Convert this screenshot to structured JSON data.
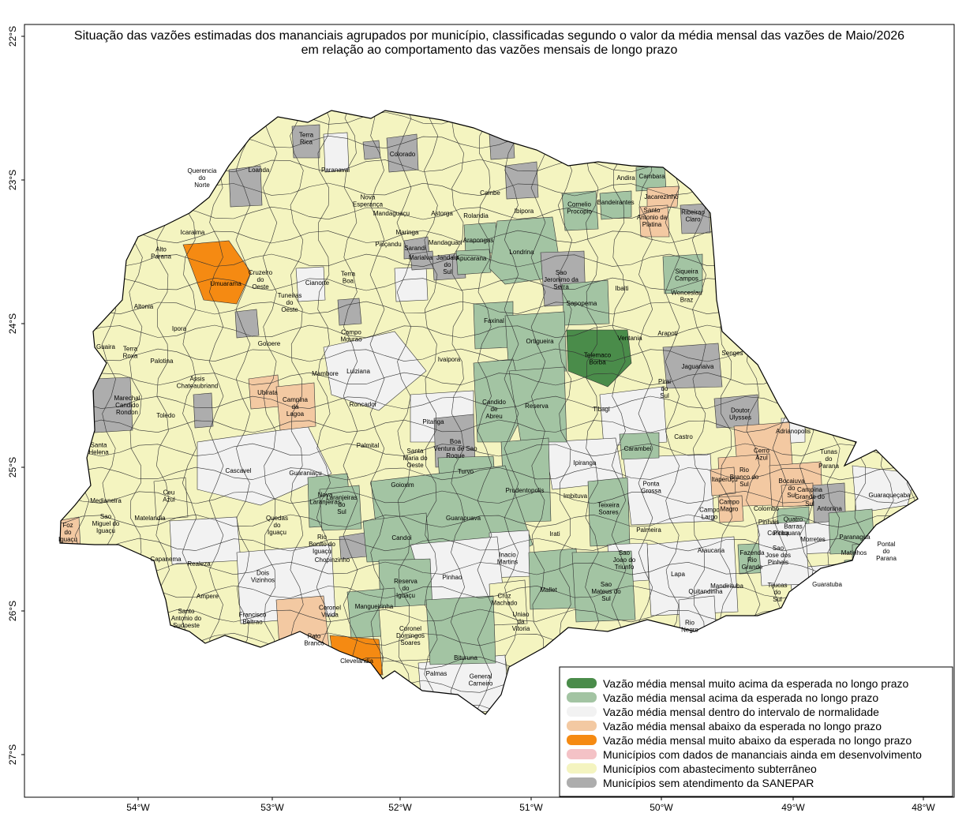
{
  "title": {
    "line1": "Situação das vazões estimadas dos mananciais agrupados por município, classificadas segundo o valor da média mensal das vazões de Maio/2026",
    "line2": "em relação ao comportamento das vazões mensais de longo prazo"
  },
  "axes": {
    "lat_labels": [
      "22°S",
      "23°S",
      "24°S",
      "25°S",
      "26°S",
      "27°S"
    ],
    "lon_labels": [
      "54°W",
      "53°W",
      "52°W",
      "51°W",
      "50°W",
      "49°W",
      "48°W"
    ]
  },
  "colors": {
    "muito_acima": "#4a8c4a",
    "acima": "#a3c4a3",
    "normal": "#f2f2f2",
    "abaixo": "#f3c9a2",
    "muito_abaixo": "#f58a12",
    "em_desenvolvimento": "#f4c2c6",
    "subterraneo": "#f4f4c0",
    "sem_atendimento": "#adadad"
  },
  "municipalities": [
    {
      "name": "Terra Rica",
      "cat": "sem_atendimento"
    },
    {
      "name": "Paranavai",
      "cat": "normal"
    },
    {
      "name": "Loanda",
      "cat": "subterraneo"
    },
    {
      "name": "Querencia do Norte",
      "cat": "subterraneo"
    },
    {
      "name": "Colorado",
      "cat": "sem_atendimento"
    },
    {
      "name": "Nova Esperança",
      "cat": "subterraneo"
    },
    {
      "name": "Mandaguaçu",
      "cat": "subterraneo"
    },
    {
      "name": "Astorga",
      "cat": "normal"
    },
    {
      "name": "Cambe",
      "cat": "acima"
    },
    {
      "name": "Rolandia",
      "cat": "acima"
    },
    {
      "name": "Ibipora",
      "cat": "acima"
    },
    {
      "name": "Cornelio Procopio",
      "cat": "acima"
    },
    {
      "name": "Andira",
      "cat": "normal"
    },
    {
      "name": "Cambara",
      "cat": "acima"
    },
    {
      "name": "Bandeirantes",
      "cat": "acima"
    },
    {
      "name": "Jacarezinho",
      "cat": "abaixo"
    },
    {
      "name": "Santo Antonio da Platina",
      "cat": "abaixo"
    },
    {
      "name": "Ribeirao Claro",
      "cat": "sem_atendimento"
    },
    {
      "name": "Icaraima",
      "cat": "subterraneo"
    },
    {
      "name": "Maringa",
      "cat": "normal"
    },
    {
      "name": "Sarandi",
      "cat": "sem_atendimento"
    },
    {
      "name": "Marialva",
      "cat": "sem_atendimento"
    },
    {
      "name": "Mandaguari",
      "cat": "normal"
    },
    {
      "name": "Paiçandu",
      "cat": "subterraneo"
    },
    {
      "name": "Jandaia do Sul",
      "cat": "sem_atendimento"
    },
    {
      "name": "Arapongas",
      "cat": "acima"
    },
    {
      "name": "Apucarana",
      "cat": "acima"
    },
    {
      "name": "Londrina",
      "cat": "acima"
    },
    {
      "name": "Sao Jeronimo da Serra",
      "cat": "sem_atendimento"
    },
    {
      "name": "Sapopema",
      "cat": "acima"
    },
    {
      "name": "Ibaiti",
      "cat": "normal"
    },
    {
      "name": "Siqueira Campos",
      "cat": "acima"
    },
    {
      "name": "Wenceslau Braz",
      "cat": "subterraneo"
    },
    {
      "name": "Alto Parana",
      "cat": "subterraneo"
    },
    {
      "name": "Umuarama",
      "cat": "muito_abaixo"
    },
    {
      "name": "Cruzeiro do Oeste",
      "cat": "subterraneo"
    },
    {
      "name": "Cianorte",
      "cat": "normal"
    },
    {
      "name": "Terra Boa",
      "cat": "subterraneo"
    },
    {
      "name": "Tuneiras do Oeste",
      "cat": "subterraneo"
    },
    {
      "name": "Altonia",
      "cat": "subterraneo"
    },
    {
      "name": "Ipora",
      "cat": "normal"
    },
    {
      "name": "Campo Mourao",
      "cat": "normal"
    },
    {
      "name": "Faxinal",
      "cat": "acima"
    },
    {
      "name": "Ortigueira",
      "cat": "acima"
    },
    {
      "name": "Telemaco Borba",
      "cat": "muito_acima"
    },
    {
      "name": "Ventania",
      "cat": "normal"
    },
    {
      "name": "Arapoti",
      "cat": "subterraneo"
    },
    {
      "name": "Senges",
      "cat": "normal"
    },
    {
      "name": "Guaira",
      "cat": "subterraneo"
    },
    {
      "name": "Terra Roxa",
      "cat": "subterraneo"
    },
    {
      "name": "Palotina",
      "cat": "subterraneo"
    },
    {
      "name": "Goioere",
      "cat": "subterraneo"
    },
    {
      "name": "Mambore",
      "cat": "subterraneo"
    },
    {
      "name": "Luiziana",
      "cat": "subterraneo"
    },
    {
      "name": "Ivaipora",
      "cat": "normal"
    },
    {
      "name": "Jaguariaiva",
      "cat": "sem_atendimento"
    },
    {
      "name": "Assis Chateaubriand",
      "cat": "normal"
    },
    {
      "name": "Ubirata",
      "cat": "abaixo"
    },
    {
      "name": "Campina da Lagoa",
      "cat": "abaixo"
    },
    {
      "name": "Roncador",
      "cat": "subterraneo"
    },
    {
      "name": "Candido de Abreu",
      "cat": "acima"
    },
    {
      "name": "Reserva",
      "cat": "acima"
    },
    {
      "name": "Tibagi",
      "cat": "normal"
    },
    {
      "name": "Pirai do Sul",
      "cat": "normal"
    },
    {
      "name": "Doutor Ulysses",
      "cat": "sem_atendimento"
    },
    {
      "name": "Marechal Candido Rondon",
      "cat": "sem_atendimento"
    },
    {
      "name": "Toledo",
      "cat": "normal"
    },
    {
      "name": "Pitanga",
      "cat": "normal"
    },
    {
      "name": "Boa Ventura de Sao Roque",
      "cat": "sem_atendimento"
    },
    {
      "name": "Castro",
      "cat": "normal"
    },
    {
      "name": "Adrianopolis",
      "cat": "normal"
    },
    {
      "name": "Cerro Azul",
      "cat": "abaixo"
    },
    {
      "name": "Tunas do Parana",
      "cat": "normal"
    },
    {
      "name": "Palmital",
      "cat": "normal"
    },
    {
      "name": "Santa Maria do Oeste",
      "cat": "subterraneo"
    },
    {
      "name": "Carambei",
      "cat": "acima"
    },
    {
      "name": "Santa Helena",
      "cat": "subterraneo"
    },
    {
      "name": "Cascavel",
      "cat": "normal"
    },
    {
      "name": "Guaraniaçu",
      "cat": "normal"
    },
    {
      "name": "Turvo",
      "cat": "acima"
    },
    {
      "name": "Ipiranga",
      "cat": "subterraneo"
    },
    {
      "name": "Rio Branco do Sul",
      "cat": "abaixo"
    },
    {
      "name": "Bocaiuva do Sul",
      "cat": "abaixo"
    },
    {
      "name": "Itaperuçu",
      "cat": "abaixo"
    },
    {
      "name": "Nova Laranjeiras",
      "cat": "acima"
    },
    {
      "name": "Goioxim",
      "cat": "subterraneo"
    },
    {
      "name": "Prudentopolis",
      "cat": "acima"
    },
    {
      "name": "Ponta Grossa",
      "cat": "normal"
    },
    {
      "name": "Guaraqueçaba",
      "cat": "normal"
    },
    {
      "name": "Ceu Azul",
      "cat": "subterraneo"
    },
    {
      "name": "Medianeira",
      "cat": "normal"
    },
    {
      "name": "Laranjeiras do Sul",
      "cat": "acima"
    },
    {
      "name": "Imbituva",
      "cat": "normal"
    },
    {
      "name": "Teixeira Soares",
      "cat": "acima"
    },
    {
      "name": "Campo Magro",
      "cat": "abaixo"
    },
    {
      "name": "Colombo",
      "cat": "normal"
    },
    {
      "name": "Campina Grande do Sul",
      "cat": "abaixo"
    },
    {
      "name": "Antonina",
      "cat": "sem_atendimento"
    },
    {
      "name": "Sao Miguel do Iguaçu",
      "cat": "subterraneo"
    },
    {
      "name": "Matelandia",
      "cat": "subterraneo"
    },
    {
      "name": "Quedas do Iguaçu",
      "cat": "normal"
    },
    {
      "name": "Guarapuava",
      "cat": "acima"
    },
    {
      "name": "Campo Largo",
      "cat": "normal"
    },
    {
      "name": "Quatro Barras",
      "cat": "acima"
    },
    {
      "name": "Foz do Iguaçu",
      "cat": "abaixo"
    },
    {
      "name": "Candoi",
      "cat": "acima"
    },
    {
      "name": "Irati",
      "cat": "normal"
    },
    {
      "name": "Palmeira",
      "cat": "normal"
    },
    {
      "name": "Curitiba",
      "cat": "normal"
    },
    {
      "name": "Pinhais",
      "cat": "normal"
    },
    {
      "name": "Piraquara",
      "cat": "acima"
    },
    {
      "name": "Morretes",
      "cat": "acima"
    },
    {
      "name": "Paranagua",
      "cat": "sem_atendimento"
    },
    {
      "name": "Pontal do Parana",
      "cat": "sem_atendimento"
    },
    {
      "name": "Rio Bonito do Iguaçu",
      "cat": "normal"
    },
    {
      "name": "Capanema",
      "cat": "normal"
    },
    {
      "name": "Inacio Martins",
      "cat": "subterraneo"
    },
    {
      "name": "Sao Joao do Triunfo",
      "cat": "acima"
    },
    {
      "name": "Araucaria",
      "cat": "normal"
    },
    {
      "name": "Fazenda Rio Grande",
      "cat": "acima"
    },
    {
      "name": "Sao Jose dos Pinhais",
      "cat": "abaixo"
    },
    {
      "name": "Matinhos",
      "cat": "abaixo"
    },
    {
      "name": "Dois Vizinhos",
      "cat": "normal"
    },
    {
      "name": "Realeza",
      "cat": "subterraneo"
    },
    {
      "name": "Chopinzinho",
      "cat": "normal"
    },
    {
      "name": "Pinhao",
      "cat": "acima"
    },
    {
      "name": "Reserva do Iguaçu",
      "cat": "acima"
    },
    {
      "name": "Mallet",
      "cat": "acima"
    },
    {
      "name": "Sao Mateus do Sul",
      "cat": "acima"
    },
    {
      "name": "Lapa",
      "cat": "normal"
    },
    {
      "name": "Mandirituba",
      "cat": "normal"
    },
    {
      "name": "Quitandinha",
      "cat": "normal"
    },
    {
      "name": "Tijucas do Sul",
      "cat": "normal"
    },
    {
      "name": "Guaratuba",
      "cat": "normal"
    },
    {
      "name": "Ampere",
      "cat": "normal"
    },
    {
      "name": "Santo Antonio do Sudoeste",
      "cat": "normal"
    },
    {
      "name": "Francisco Beltrao",
      "cat": "normal"
    },
    {
      "name": "Coronel Vivida",
      "cat": "normal"
    },
    {
      "name": "Mangueirinha",
      "cat": "acima"
    },
    {
      "name": "Cruz Machado",
      "cat": "subterraneo"
    },
    {
      "name": "Uniao da Vitoria",
      "cat": "normal"
    },
    {
      "name": "Rio Negro",
      "cat": "normal"
    },
    {
      "name": "Pato Branco",
      "cat": "abaixo"
    },
    {
      "name": "Coronel Domingos Soares",
      "cat": "subterraneo"
    },
    {
      "name": "Bituruna",
      "cat": "acima"
    },
    {
      "name": "Clevelandia",
      "cat": "muito_abaixo"
    },
    {
      "name": "Palmas",
      "cat": "normal"
    },
    {
      "name": "General Carneiro",
      "cat": "normal"
    }
  ],
  "legend": {
    "items": [
      {
        "key": "muito_acima",
        "label": "Vazão média mensal muito acima da esperada no longo prazo"
      },
      {
        "key": "acima",
        "label": "Vazão média mensal acima da esperada no longo prazo"
      },
      {
        "key": "normal",
        "label": "Vazão média mensal dentro do intervalo de normalidade"
      },
      {
        "key": "abaixo",
        "label": "Vazão média mensal abaixo da esperada no longo prazo"
      },
      {
        "key": "muito_abaixo",
        "label": "Vazão média mensal muito abaixo da esperada no longo prazo"
      },
      {
        "key": "em_desenvolvimento",
        "label": "Municípios com dados de mananciais ainda em desenvolvimento"
      },
      {
        "key": "subterraneo",
        "label": "Municípios com abastecimento subterrâneo"
      },
      {
        "key": "sem_atendimento",
        "label": "Municípios sem atendimento da SANEPAR"
      }
    ]
  }
}
